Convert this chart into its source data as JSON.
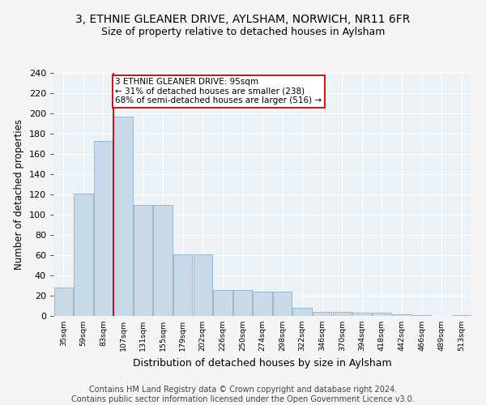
{
  "title1": "3, ETHNIE GLEANER DRIVE, AYLSHAM, NORWICH, NR11 6FR",
  "title2": "Size of property relative to detached houses in Aylsham",
  "xlabel": "Distribution of detached houses by size in Aylsham",
  "ylabel": "Number of detached properties",
  "footer": "Contains HM Land Registry data © Crown copyright and database right 2024.\nContains public sector information licensed under the Open Government Licence v3.0.",
  "bin_labels": [
    "35sqm",
    "59sqm",
    "83sqm",
    "107sqm",
    "131sqm",
    "155sqm",
    "179sqm",
    "202sqm",
    "226sqm",
    "250sqm",
    "274sqm",
    "298sqm",
    "322sqm",
    "346sqm",
    "370sqm",
    "394sqm",
    "418sqm",
    "442sqm",
    "466sqm",
    "489sqm",
    "513sqm"
  ],
  "bar_heights": [
    28,
    121,
    173,
    197,
    110,
    110,
    61,
    61,
    26,
    26,
    24,
    24,
    8,
    4,
    4,
    3,
    3,
    2,
    1,
    0,
    1
  ],
  "bar_color": "#c9d9e8",
  "bar_edge_color": "#8ab4cc",
  "annotation_text": "3 ETHNIE GLEANER DRIVE: 95sqm\n← 31% of detached houses are smaller (238)\n68% of semi-detached houses are larger (516) →",
  "annotation_box_color": "#ffffff",
  "annotation_box_edge": "#cc0000",
  "vline_color": "#cc0000",
  "vline_x": 2.5,
  "ylim": [
    0,
    240
  ],
  "yticks": [
    0,
    20,
    40,
    60,
    80,
    100,
    120,
    140,
    160,
    180,
    200,
    220,
    240
  ],
  "background_color": "#edf2f7",
  "grid_color": "#ffffff",
  "title1_fontsize": 10,
  "title2_fontsize": 9,
  "xlabel_fontsize": 9,
  "ylabel_fontsize": 8.5,
  "footer_fontsize": 7,
  "annotation_fontsize": 7.5
}
